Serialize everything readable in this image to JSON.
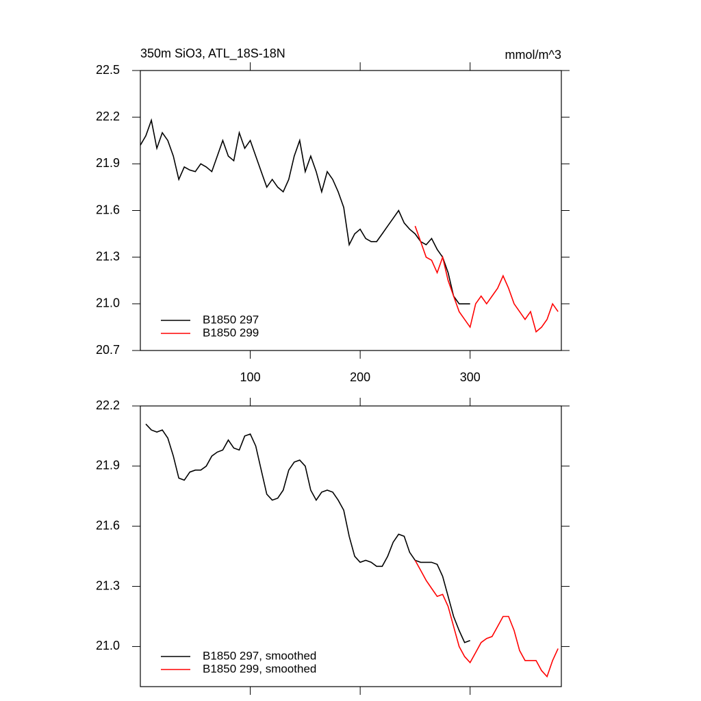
{
  "chart_data": [
    {
      "type": "line",
      "title": "350m SiO3, ATL_18S-18N",
      "units": "mmol/m^3",
      "x": [
        0,
        5,
        10,
        15,
        20,
        25,
        30,
        35,
        40,
        45,
        50,
        55,
        60,
        65,
        70,
        75,
        80,
        85,
        90,
        95,
        100,
        105,
        110,
        115,
        120,
        125,
        130,
        135,
        140,
        145,
        150,
        155,
        160,
        165,
        170,
        175,
        180,
        185,
        190,
        195,
        200,
        205,
        210,
        215,
        220,
        225,
        230,
        235,
        240,
        245,
        250,
        255,
        260,
        265,
        270,
        275,
        280,
        285,
        290,
        295,
        300,
        305,
        310,
        315,
        320,
        325,
        330,
        335,
        340,
        345,
        350,
        355,
        360,
        365,
        370,
        375,
        380
      ],
      "series": [
        {
          "name": "B1850 297",
          "color": "#000000",
          "values": [
            22.02,
            22.08,
            22.18,
            22.0,
            22.1,
            22.05,
            21.95,
            21.8,
            21.88,
            21.86,
            21.85,
            21.9,
            21.88,
            21.85,
            21.95,
            22.05,
            21.95,
            21.92,
            22.1,
            22.0,
            22.05,
            21.95,
            21.85,
            21.75,
            21.8,
            21.75,
            21.72,
            21.8,
            21.95,
            22.05,
            21.85,
            21.95,
            21.85,
            21.72,
            21.85,
            21.8,
            21.72,
            21.62,
            21.38,
            21.45,
            21.48,
            21.42,
            21.4,
            21.4,
            21.45,
            21.5,
            21.55,
            21.6,
            21.52,
            21.48,
            21.45,
            21.4,
            21.38,
            21.42,
            21.35,
            21.3,
            21.2,
            21.05,
            21.0,
            21.0,
            21.0,
            null,
            null,
            null,
            null,
            null,
            null,
            null,
            null,
            null,
            null,
            null,
            null,
            null,
            null,
            null,
            null
          ]
        },
        {
          "name": "B1850 299",
          "color": "#ff0000",
          "values": [
            null,
            null,
            null,
            null,
            null,
            null,
            null,
            null,
            null,
            null,
            null,
            null,
            null,
            null,
            null,
            null,
            null,
            null,
            null,
            null,
            null,
            null,
            null,
            null,
            null,
            null,
            null,
            null,
            null,
            null,
            null,
            null,
            null,
            null,
            null,
            null,
            null,
            null,
            null,
            null,
            null,
            null,
            null,
            null,
            null,
            null,
            null,
            null,
            null,
            null,
            21.5,
            21.4,
            21.3,
            21.28,
            21.2,
            21.3,
            21.15,
            21.05,
            20.95,
            20.9,
            20.85,
            21.0,
            21.05,
            21.0,
            21.05,
            21.1,
            21.18,
            21.1,
            21.0,
            20.95,
            20.9,
            20.95,
            20.82,
            20.85,
            20.9,
            21.0,
            20.95
          ]
        }
      ],
      "xlim": [
        0,
        383
      ],
      "xticks": [
        100,
        200,
        300
      ],
      "xtick_labels": true,
      "ylim": [
        20.7,
        22.5
      ],
      "yticks": [
        20.7,
        {
          "value": 21,
          "label": "21.0"
        },
        21.3,
        21.6,
        21.9,
        22.2,
        22.5
      ]
    },
    {
      "type": "line",
      "x": [
        0,
        5,
        10,
        15,
        20,
        25,
        30,
        35,
        40,
        45,
        50,
        55,
        60,
        65,
        70,
        75,
        80,
        85,
        90,
        95,
        100,
        105,
        110,
        115,
        120,
        125,
        130,
        135,
        140,
        145,
        150,
        155,
        160,
        165,
        170,
        175,
        180,
        185,
        190,
        195,
        200,
        205,
        210,
        215,
        220,
        225,
        230,
        235,
        240,
        245,
        250,
        255,
        260,
        265,
        270,
        275,
        280,
        285,
        290,
        295,
        300,
        305,
        310,
        315,
        320,
        325,
        330,
        335,
        340,
        345,
        350,
        355,
        360,
        365,
        370,
        375,
        380
      ],
      "series": [
        {
          "name": "B1850 297, smoothed",
          "color": "#000000",
          "values": [
            null,
            22.11,
            22.08,
            22.07,
            22.08,
            22.04,
            21.95,
            21.84,
            21.83,
            21.87,
            21.88,
            21.88,
            21.9,
            21.95,
            21.97,
            21.98,
            22.03,
            21.99,
            21.98,
            22.05,
            22.06,
            22.0,
            21.88,
            21.76,
            21.73,
            21.74,
            21.78,
            21.88,
            21.92,
            21.93,
            21.9,
            21.78,
            21.73,
            21.77,
            21.78,
            21.77,
            21.73,
            21.68,
            21.55,
            21.45,
            21.42,
            21.43,
            21.42,
            21.4,
            21.4,
            21.45,
            21.52,
            21.56,
            21.55,
            21.47,
            21.43,
            21.42,
            21.42,
            21.42,
            21.41,
            21.35,
            21.25,
            21.15,
            21.08,
            21.02,
            21.03,
            null,
            null,
            null,
            null,
            null,
            null,
            null,
            null,
            null,
            null,
            null,
            null,
            null,
            null,
            null,
            null
          ]
        },
        {
          "name": "B1850 299, smoothed",
          "color": "#ff0000",
          "values": [
            null,
            null,
            null,
            null,
            null,
            null,
            null,
            null,
            null,
            null,
            null,
            null,
            null,
            null,
            null,
            null,
            null,
            null,
            null,
            null,
            null,
            null,
            null,
            null,
            null,
            null,
            null,
            null,
            null,
            null,
            null,
            null,
            null,
            null,
            null,
            null,
            null,
            null,
            null,
            null,
            null,
            null,
            null,
            null,
            null,
            null,
            null,
            null,
            null,
            null,
            21.43,
            21.38,
            21.33,
            21.29,
            21.25,
            21.26,
            21.2,
            21.1,
            21.0,
            20.95,
            20.92,
            20.97,
            21.02,
            21.04,
            21.05,
            21.1,
            21.15,
            21.15,
            21.08,
            20.98,
            20.93,
            20.93,
            20.93,
            20.88,
            20.85,
            20.93,
            20.99
          ]
        }
      ],
      "xlim": [
        0,
        383
      ],
      "xticks": [
        100,
        200,
        300
      ],
      "xtick_labels": false,
      "ylim": [
        20.8,
        22.2
      ],
      "yticks": [
        {
          "value": 21,
          "label": "21.0"
        },
        21.3,
        21.6,
        21.9,
        22.2
      ]
    }
  ]
}
